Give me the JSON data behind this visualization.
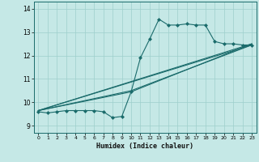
{
  "xlabel": "Humidex (Indice chaleur)",
  "bg_color": "#c5e8e6",
  "line_color": "#1a6b6b",
  "grid_color": "#9ecfcc",
  "xlim": [
    -0.5,
    23.5
  ],
  "ylim": [
    8.7,
    14.3
  ],
  "yticks": [
    9,
    10,
    11,
    12,
    13,
    14
  ],
  "xticks": [
    0,
    1,
    2,
    3,
    4,
    5,
    6,
    7,
    8,
    9,
    10,
    11,
    12,
    13,
    14,
    15,
    16,
    17,
    18,
    19,
    20,
    21,
    22,
    23
  ],
  "main_x": [
    0,
    1,
    2,
    3,
    4,
    5,
    6,
    7,
    8,
    9,
    10,
    11,
    12,
    13,
    14,
    15,
    16,
    17,
    18,
    19,
    20,
    21,
    22,
    23
  ],
  "main_y": [
    9.6,
    9.55,
    9.6,
    9.65,
    9.65,
    9.65,
    9.65,
    9.6,
    9.35,
    9.4,
    10.45,
    11.9,
    12.7,
    13.55,
    13.3,
    13.3,
    13.35,
    13.3,
    13.3,
    12.6,
    12.5,
    12.5,
    12.45,
    12.45
  ],
  "trend1_x": [
    0,
    23
  ],
  "trend1_y": [
    9.65,
    12.45
  ],
  "trend2_x": [
    0,
    23
  ],
  "trend2_y": [
    9.65,
    12.5
  ],
  "trend3_x": [
    0,
    10,
    23
  ],
  "trend3_y": [
    9.65,
    10.5,
    12.45
  ],
  "trend4_x": [
    0,
    10,
    23
  ],
  "trend4_y": [
    9.65,
    10.45,
    12.5
  ]
}
